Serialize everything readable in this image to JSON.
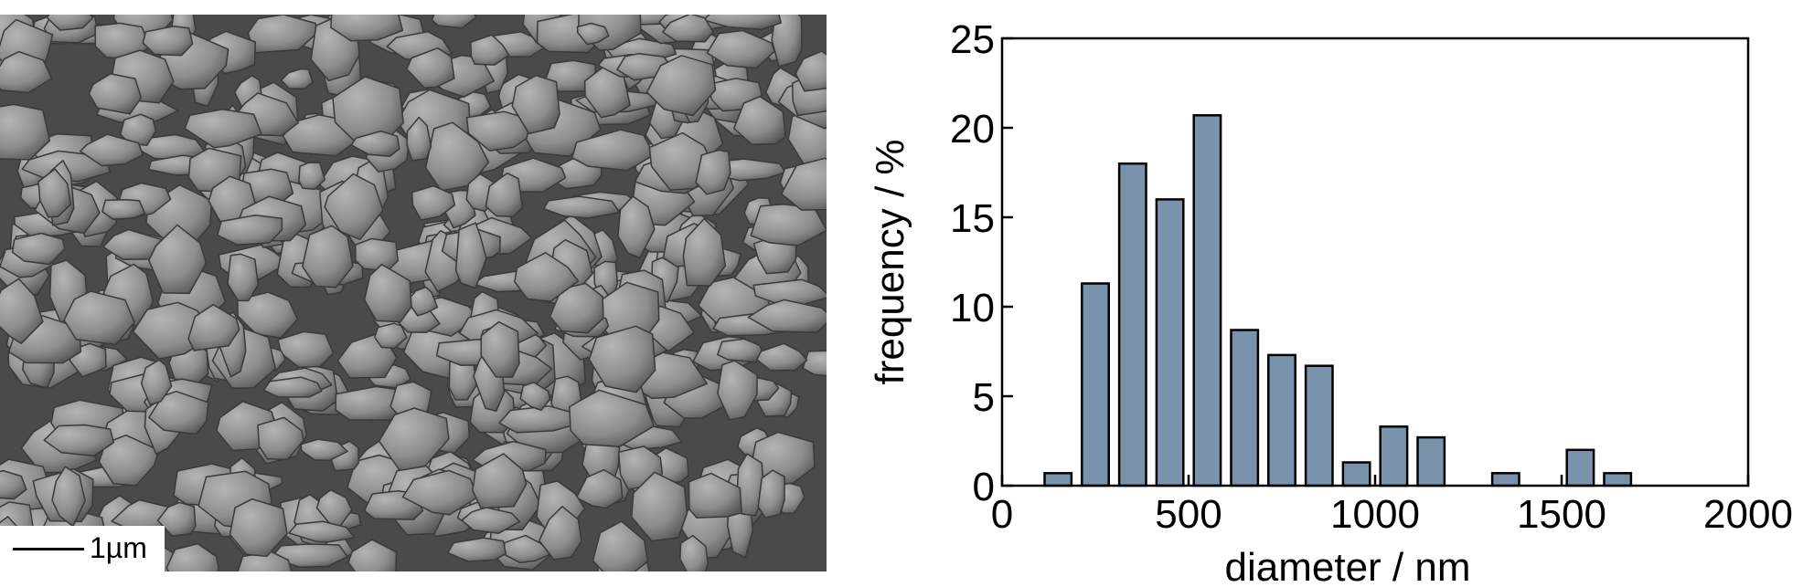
{
  "micrograph": {
    "scale_bar_label": "1µm"
  },
  "chart_data": {
    "type": "bar",
    "xlabel": "diameter / nm",
    "ylabel": "frequency / %",
    "xlim": [
      0,
      2000
    ],
    "ylim": [
      0,
      25
    ],
    "xticks": [
      "0",
      "500",
      "1000",
      "1500",
      "2000"
    ],
    "yticks": [
      "0",
      "5",
      "10",
      "15",
      "20",
      "25"
    ],
    "bin_width": 100,
    "bins": [
      150,
      250,
      350,
      450,
      550,
      650,
      750,
      850,
      950,
      1050,
      1150,
      1350,
      1550,
      1650
    ],
    "values": [
      0.7,
      11.3,
      18.0,
      16.0,
      20.7,
      8.7,
      7.3,
      6.7,
      1.3,
      3.3,
      2.7,
      0.7,
      2.0,
      0.7
    ],
    "bar_color": "#7a93ad",
    "edge_color": "#000000",
    "grid": false,
    "legend": "none"
  }
}
